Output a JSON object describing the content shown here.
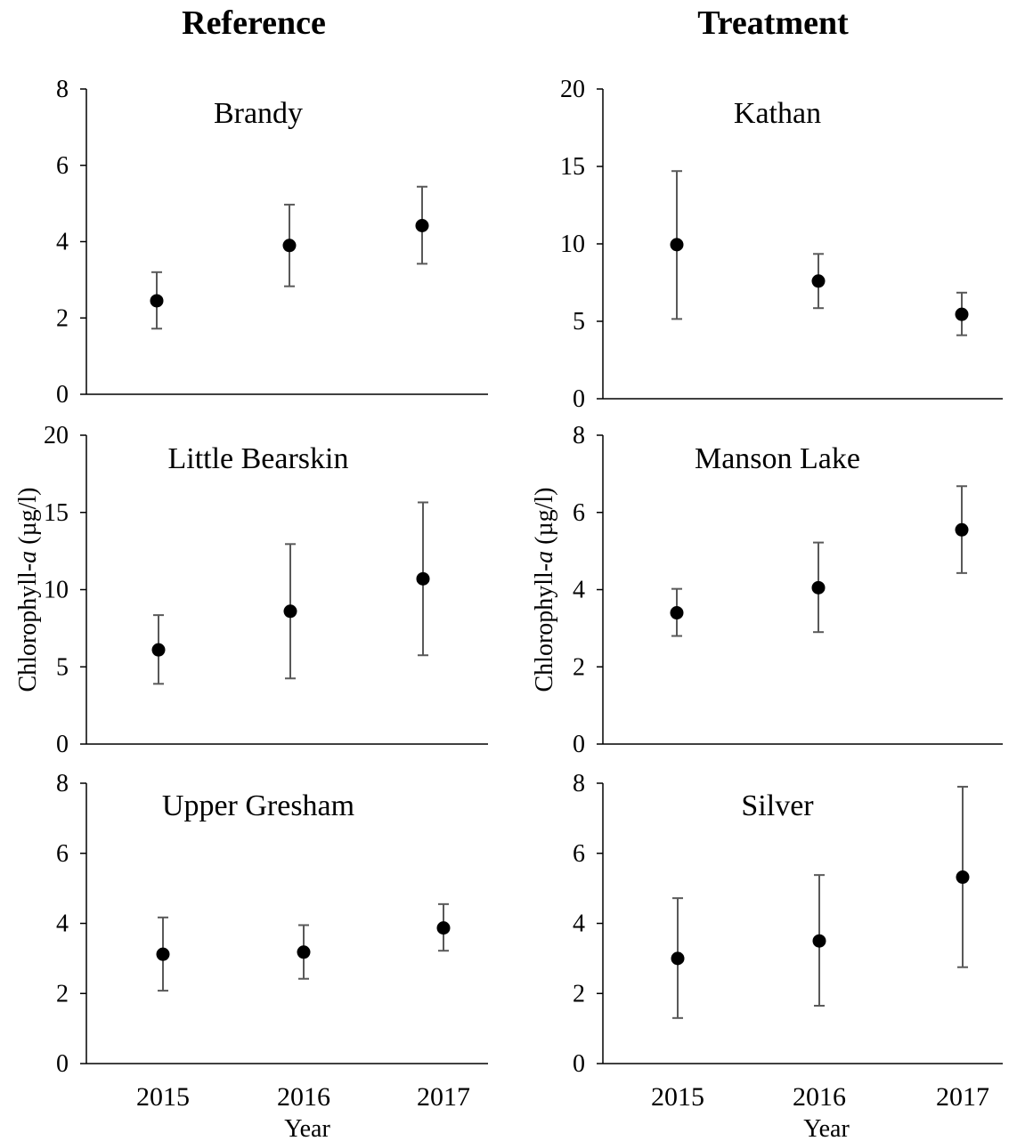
{
  "headers": {
    "left": "Reference",
    "right": "Treatment"
  },
  "ylabel_prefix": "Chlorophyll-",
  "ylabel_italic": "a",
  "ylabel_suffix": " (µg/l)",
  "xlabel": "Year",
  "x_ticks": [
    "2015",
    "2016",
    "2017"
  ],
  "colors": {
    "marker": "#000000",
    "errorbar": "#595959",
    "axis": "#000000"
  },
  "chart_data": [
    {
      "type": "scatter",
      "title": "Brandy",
      "group": "Reference",
      "categories": [
        "2015",
        "2016",
        "2017"
      ],
      "values": [
        2.45,
        3.9,
        4.42
      ],
      "err_low": [
        1.72,
        2.83,
        3.42
      ],
      "err_high": [
        3.2,
        4.97,
        5.44
      ],
      "ylim": [
        0,
        8
      ],
      "yticks": [
        0,
        2,
        4,
        6,
        8
      ]
    },
    {
      "type": "scatter",
      "title": "Kathan",
      "group": "Treatment",
      "categories": [
        "2015",
        "2016",
        "2017"
      ],
      "values": [
        9.95,
        7.6,
        5.45
      ],
      "err_low": [
        5.15,
        5.85,
        4.1
      ],
      "err_high": [
        14.7,
        9.35,
        6.85
      ],
      "ylim": [
        0,
        20
      ],
      "yticks": [
        0,
        5,
        10,
        15,
        20
      ]
    },
    {
      "type": "scatter",
      "title": "Little Bearskin",
      "group": "Reference",
      "categories": [
        "2015",
        "2016",
        "2017"
      ],
      "values": [
        6.1,
        8.6,
        10.7
      ],
      "err_low": [
        3.9,
        4.25,
        5.75
      ],
      "err_high": [
        8.35,
        12.95,
        15.65
      ],
      "ylim": [
        0,
        20
      ],
      "yticks": [
        0,
        5,
        10,
        15,
        20
      ]
    },
    {
      "type": "scatter",
      "title": "Manson Lake",
      "group": "Treatment",
      "categories": [
        "2015",
        "2016",
        "2017"
      ],
      "values": [
        3.4,
        4.05,
        5.55
      ],
      "err_low": [
        2.8,
        2.9,
        4.43
      ],
      "err_high": [
        4.02,
        5.22,
        6.68
      ],
      "ylim": [
        0,
        8
      ],
      "yticks": [
        0,
        2,
        4,
        6,
        8
      ]
    },
    {
      "type": "scatter",
      "title": "Upper Gresham",
      "group": "Reference",
      "categories": [
        "2015",
        "2016",
        "2017"
      ],
      "values": [
        3.12,
        3.18,
        3.87
      ],
      "err_low": [
        2.08,
        2.42,
        3.22
      ],
      "err_high": [
        4.17,
        3.95,
        4.55
      ],
      "ylim": [
        0,
        8
      ],
      "yticks": [
        0,
        2,
        4,
        6,
        8
      ]
    },
    {
      "type": "scatter",
      "title": "Silver",
      "group": "Treatment",
      "categories": [
        "2015",
        "2016",
        "2017"
      ],
      "values": [
        3.0,
        3.5,
        5.32
      ],
      "err_low": [
        1.3,
        1.65,
        2.75
      ],
      "err_high": [
        4.72,
        5.38,
        7.9
      ],
      "ylim": [
        0,
        8
      ],
      "yticks": [
        0,
        2,
        4,
        6,
        8
      ]
    }
  ]
}
